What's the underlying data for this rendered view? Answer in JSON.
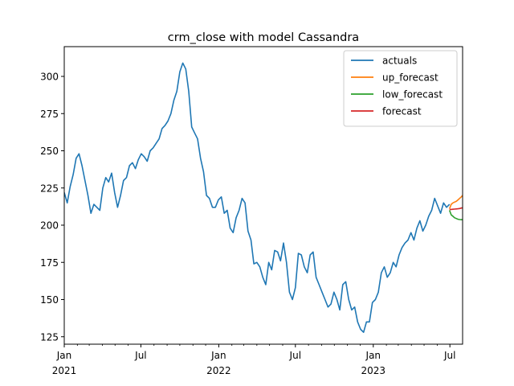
{
  "chart_data": {
    "type": "line",
    "title": "crm_close with model Cassandra",
    "xlabel": "",
    "ylabel": "",
    "xlim": [
      "2021-01-01",
      "2023-07-31"
    ],
    "ylim": [
      120,
      320
    ],
    "grid": false,
    "legend_position": "top-right",
    "yticks": [
      125,
      150,
      175,
      200,
      225,
      250,
      275,
      300
    ],
    "xticks": [
      {
        "date": "2021-01-01",
        "label": "Jan",
        "sublabel": "2021"
      },
      {
        "date": "2021-07-01",
        "label": "Jul",
        "sublabel": ""
      },
      {
        "date": "2022-01-01",
        "label": "Jan",
        "sublabel": "2022"
      },
      {
        "date": "2022-07-01",
        "label": "Jul",
        "sublabel": ""
      },
      {
        "date": "2023-01-01",
        "label": "Jan",
        "sublabel": "2023"
      },
      {
        "date": "2023-07-01",
        "label": "Jul",
        "sublabel": ""
      }
    ],
    "series": [
      {
        "name": "actuals",
        "color": "#1f77b4",
        "x": [
          "2021-01-01",
          "2021-01-08",
          "2021-01-15",
          "2021-01-22",
          "2021-01-29",
          "2021-02-05",
          "2021-02-12",
          "2021-02-19",
          "2021-02-26",
          "2021-03-05",
          "2021-03-12",
          "2021-03-19",
          "2021-03-26",
          "2021-04-02",
          "2021-04-09",
          "2021-04-16",
          "2021-04-23",
          "2021-04-30",
          "2021-05-07",
          "2021-05-14",
          "2021-05-21",
          "2021-05-28",
          "2021-06-04",
          "2021-06-11",
          "2021-06-18",
          "2021-06-25",
          "2021-07-02",
          "2021-07-09",
          "2021-07-16",
          "2021-07-23",
          "2021-07-30",
          "2021-08-06",
          "2021-08-13",
          "2021-08-20",
          "2021-08-27",
          "2021-09-03",
          "2021-09-10",
          "2021-09-17",
          "2021-09-24",
          "2021-10-01",
          "2021-10-08",
          "2021-10-15",
          "2021-10-22",
          "2021-10-29",
          "2021-11-05",
          "2021-11-12",
          "2021-11-19",
          "2021-11-26",
          "2021-12-03",
          "2021-12-10",
          "2021-12-17",
          "2021-12-24",
          "2021-12-31",
          "2022-01-07",
          "2022-01-14",
          "2022-01-21",
          "2022-01-28",
          "2022-02-04",
          "2022-02-11",
          "2022-02-18",
          "2022-02-25",
          "2022-03-04",
          "2022-03-11",
          "2022-03-18",
          "2022-03-25",
          "2022-04-01",
          "2022-04-08",
          "2022-04-15",
          "2022-04-22",
          "2022-04-29",
          "2022-05-06",
          "2022-05-13",
          "2022-05-20",
          "2022-05-27",
          "2022-06-03",
          "2022-06-10",
          "2022-06-17",
          "2022-06-24",
          "2022-07-01",
          "2022-07-08",
          "2022-07-15",
          "2022-07-22",
          "2022-07-29",
          "2022-08-05",
          "2022-08-12",
          "2022-08-19",
          "2022-08-26",
          "2022-09-02",
          "2022-09-09",
          "2022-09-16",
          "2022-09-23",
          "2022-09-30",
          "2022-10-07",
          "2022-10-14",
          "2022-10-21",
          "2022-10-28",
          "2022-11-04",
          "2022-11-11",
          "2022-11-18",
          "2022-11-25",
          "2022-12-02",
          "2022-12-09",
          "2022-12-16",
          "2022-12-23",
          "2022-12-30",
          "2023-01-06",
          "2023-01-13",
          "2023-01-20",
          "2023-01-27",
          "2023-02-03",
          "2023-02-10",
          "2023-02-17",
          "2023-02-24",
          "2023-03-03",
          "2023-03-10",
          "2023-03-17",
          "2023-03-24",
          "2023-03-31",
          "2023-04-07",
          "2023-04-14",
          "2023-04-21",
          "2023-04-28",
          "2023-05-05",
          "2023-05-12",
          "2023-05-19",
          "2023-05-26",
          "2023-06-02",
          "2023-06-09",
          "2023-06-16",
          "2023-06-23",
          "2023-06-30"
        ],
        "y": [
          222,
          215,
          226,
          234,
          245,
          248,
          240,
          230,
          220,
          208,
          214,
          212,
          210,
          225,
          232,
          229,
          235,
          222,
          212,
          220,
          230,
          232,
          240,
          242,
          238,
          244,
          248,
          246,
          243,
          250,
          252,
          255,
          258,
          265,
          267,
          270,
          275,
          284,
          290,
          303,
          309,
          305,
          290,
          266,
          262,
          258,
          245,
          236,
          220,
          218,
          212,
          212,
          217,
          219,
          208,
          210,
          198,
          195,
          205,
          210,
          218,
          215,
          196,
          190,
          174,
          175,
          172,
          165,
          160,
          175,
          170,
          183,
          182,
          176,
          188,
          175,
          155,
          150,
          158,
          181,
          180,
          172,
          168,
          180,
          182,
          165,
          160,
          155,
          150,
          145,
          147,
          155,
          150,
          143,
          160,
          162,
          150,
          143,
          145,
          135,
          130,
          128,
          135,
          135,
          148,
          150,
          155,
          168,
          172,
          165,
          168,
          175,
          172,
          180,
          185,
          188,
          190,
          195,
          190,
          198,
          203,
          196,
          200,
          206,
          210,
          218,
          213,
          208,
          215,
          212,
          214
        ]
      },
      {
        "name": "up_forecast",
        "color": "#ff7f0e",
        "x": [
          "2023-06-30",
          "2023-07-04",
          "2023-07-08",
          "2023-07-12",
          "2023-07-16",
          "2023-07-20",
          "2023-07-24",
          "2023-07-28",
          "2023-07-31"
        ],
        "y": [
          211,
          214,
          215,
          215.5,
          216,
          217,
          218,
          219,
          220
        ]
      },
      {
        "name": "low_forecast",
        "color": "#2ca02c",
        "x": [
          "2023-06-30",
          "2023-07-04",
          "2023-07-08",
          "2023-07-12",
          "2023-07-16",
          "2023-07-20",
          "2023-07-24",
          "2023-07-28",
          "2023-07-31"
        ],
        "y": [
          210,
          207,
          206,
          205,
          204.5,
          204,
          203.8,
          203.7,
          203.7
        ]
      },
      {
        "name": "forecast",
        "color": "#d62728",
        "x": [
          "2023-06-30",
          "2023-07-04",
          "2023-07-08",
          "2023-07-12",
          "2023-07-16",
          "2023-07-20",
          "2023-07-24",
          "2023-07-28",
          "2023-07-31"
        ],
        "y": [
          210.5,
          210.6,
          210.7,
          210.8,
          210.9,
          211,
          211.2,
          211.5,
          211.7
        ]
      }
    ]
  }
}
